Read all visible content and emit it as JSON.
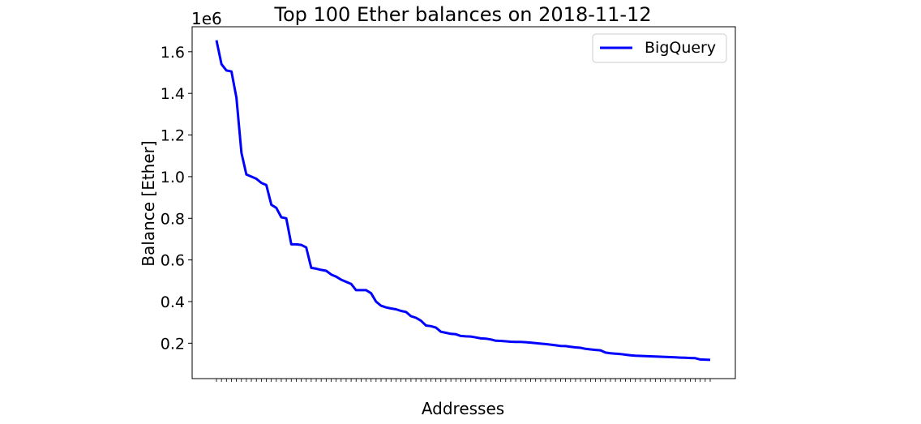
{
  "chart_data": {
    "type": "line",
    "title": "Top 100 Ether balances on 2018-11-12",
    "xlabel": "Addresses",
    "ylabel": "Balance [Ether]",
    "y_offset_label": "1e6",
    "ylim": [
      0.03,
      1.72
    ],
    "y_ticks": [
      "0.2",
      "0.4",
      "0.6",
      "0.8",
      "1.0",
      "1.2",
      "1.4",
      "1.6"
    ],
    "grid": false,
    "legend_position": "top-right",
    "series": [
      {
        "name": "BigQuery",
        "color": "#0000ff",
        "values": [
          1.655,
          1.54,
          1.51,
          1.505,
          1.38,
          1.115,
          1.01,
          1.0,
          0.99,
          0.97,
          0.96,
          0.865,
          0.85,
          0.805,
          0.8,
          0.675,
          0.675,
          0.672,
          0.66,
          0.562,
          0.558,
          0.552,
          0.548,
          0.53,
          0.52,
          0.505,
          0.495,
          0.485,
          0.455,
          0.455,
          0.455,
          0.44,
          0.4,
          0.38,
          0.372,
          0.367,
          0.363,
          0.355,
          0.35,
          0.33,
          0.322,
          0.308,
          0.285,
          0.282,
          0.275,
          0.255,
          0.25,
          0.245,
          0.243,
          0.235,
          0.233,
          0.232,
          0.228,
          0.223,
          0.222,
          0.218,
          0.212,
          0.211,
          0.209,
          0.207,
          0.206,
          0.206,
          0.205,
          0.203,
          0.2,
          0.198,
          0.196,
          0.193,
          0.19,
          0.187,
          0.186,
          0.183,
          0.18,
          0.178,
          0.173,
          0.17,
          0.168,
          0.166,
          0.155,
          0.152,
          0.15,
          0.148,
          0.145,
          0.142,
          0.14,
          0.139,
          0.138,
          0.137,
          0.136,
          0.135,
          0.134,
          0.133,
          0.132,
          0.131,
          0.13,
          0.129,
          0.128,
          0.122,
          0.121,
          0.12
        ]
      }
    ]
  }
}
